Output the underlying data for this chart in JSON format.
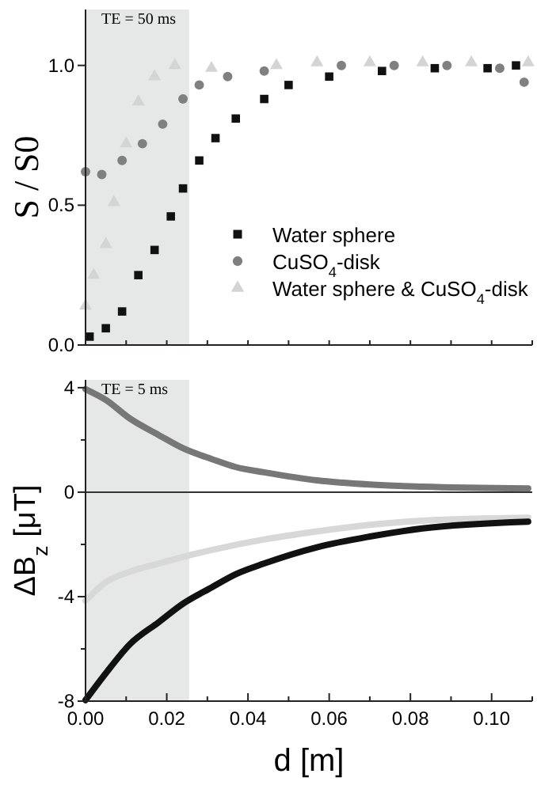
{
  "chart_data": [
    {
      "type": "scatter",
      "ylabel": "S / S0",
      "annotations": [
        "TE = 50 ms"
      ],
      "xlim": [
        0,
        0.11
      ],
      "ylim": [
        0,
        1.2
      ],
      "xticks": [
        {
          "value": 0,
          "label": null
        },
        {
          "value": 0.01,
          "label": null
        },
        {
          "value": 0.02,
          "label": null
        },
        {
          "value": 0.03,
          "label": null
        },
        {
          "value": 0.04,
          "label": null
        },
        {
          "value": 0.05,
          "label": null
        },
        {
          "value": 0.06,
          "label": null
        },
        {
          "value": 0.07,
          "label": null
        },
        {
          "value": 0.08,
          "label": null
        },
        {
          "value": 0.09,
          "label": null
        },
        {
          "value": 0.1,
          "label": null
        },
        {
          "value": 0.11,
          "label": null
        }
      ],
      "yticks": [
        {
          "value": 0,
          "label": "0.0"
        },
        {
          "value": 0.5,
          "label": "0.5"
        },
        {
          "value": 1,
          "label": "1.0"
        }
      ],
      "tick_labels": "y",
      "legend": "bottom right",
      "grid": false,
      "bands": [
        {
          "axis": "x",
          "from": 0,
          "to": 0.0255,
          "color": "#e6e8e8"
        }
      ],
      "series": [
        {
          "name": "Water sphere",
          "color": "#111111",
          "marker": "square",
          "x": [
            0.001,
            0.005,
            0.009,
            0.013,
            0.017,
            0.021,
            0.024,
            0.028,
            0.032,
            0.037,
            0.044,
            0.05,
            0.06,
            0.073,
            0.086,
            0.099,
            0.106
          ],
          "values": [
            0.03,
            0.06,
            0.12,
            0.25,
            0.34,
            0.46,
            0.56,
            0.66,
            0.74,
            0.81,
            0.88,
            0.93,
            0.96,
            0.98,
            0.99,
            0.99,
            1.0
          ]
        },
        {
          "name": "CuSO$_{4}$-disk",
          "color": "#808080",
          "marker": "circle",
          "x": [
            0,
            0.004,
            0.009,
            0.014,
            0.019,
            0.024,
            0.028,
            0.035,
            0.044,
            0.063,
            0.076,
            0.089,
            0.102,
            0.108
          ],
          "values": [
            0.62,
            0.61,
            0.66,
            0.72,
            0.79,
            0.88,
            0.93,
            0.96,
            0.98,
            1.0,
            1.0,
            1.0,
            0.99,
            0.94
          ]
        },
        {
          "name": "Water sphere & CuSO$_{4}$-disk",
          "color": "#d4d4d4",
          "marker": "triangle",
          "x": [
            0,
            0.002,
            0.005,
            0.007,
            0.01,
            0.013,
            0.017,
            0.022,
            0.031,
            0.047,
            0.057,
            0.07,
            0.083,
            0.095,
            0.109
          ],
          "values": [
            0.14,
            0.25,
            0.36,
            0.51,
            0.72,
            0.87,
            0.96,
            1.0,
            0.99,
            1.0,
            1.01,
            1.01,
            1.01,
            1.01,
            1.01
          ]
        }
      ]
    },
    {
      "type": "line",
      "ylabel": "ΔB$_{z}$ [μT]",
      "xlabel": "d [m]",
      "annotations": [
        "TE = 5 ms"
      ],
      "xlim": [
        0,
        0.11
      ],
      "ylim": [
        -8,
        4.3
      ],
      "xticks": [
        {
          "value": 0,
          "label": "0.00"
        },
        {
          "value": 0.01,
          "label": null
        },
        {
          "value": 0.02,
          "label": "0.02"
        },
        {
          "value": 0.03,
          "label": null
        },
        {
          "value": 0.04,
          "label": "0.04"
        },
        {
          "value": 0.05,
          "label": null
        },
        {
          "value": 0.06,
          "label": "0.06"
        },
        {
          "value": 0.07,
          "label": null
        },
        {
          "value": 0.08,
          "label": "0.08"
        },
        {
          "value": 0.09,
          "label": null
        },
        {
          "value": 0.1,
          "label": "0.10"
        },
        {
          "value": 0.11,
          "label": null
        }
      ],
      "yticks": [
        {
          "value": -8,
          "label": "-8"
        },
        {
          "value": -6,
          "label": null
        },
        {
          "value": -4,
          "label": "-4"
        },
        {
          "value": -2,
          "label": null
        },
        0,
        {
          "value": 2,
          "label": null
        },
        4
      ],
      "grid": false,
      "line_style": "solid",
      "marker": "none",
      "bands": [
        {
          "axis": "x",
          "from": 0,
          "to": 0.0255,
          "color": "#e6e8e8"
        }
      ],
      "ref_lines": [
        {
          "axis": "y",
          "value": 0,
          "color": "#333333"
        }
      ],
      "series": [
        {
          "color": "#777777",
          "x": [
            0,
            0.005,
            0.011,
            0.018,
            0.024,
            0.031,
            0.037,
            0.044,
            0.057,
            0.07,
            0.083,
            0.109
          ],
          "values": [
            3.94,
            3.53,
            2.81,
            2.19,
            1.68,
            1.27,
            0.96,
            0.76,
            0.45,
            0.29,
            0.21,
            0.14
          ]
        },
        {
          "color": "#d8d8d8",
          "x": [
            0,
            0.005,
            0.011,
            0.018,
            0.024,
            0.031,
            0.044,
            0.057,
            0.07,
            0.083,
            0.109
          ],
          "values": [
            -4.16,
            -3.45,
            -3.04,
            -2.73,
            -2.48,
            -2.22,
            -1.81,
            -1.5,
            -1.25,
            -1.09,
            -0.98
          ]
        },
        {
          "color": "#111111",
          "x": [
            0,
            0.005,
            0.011,
            0.018,
            0.024,
            0.031,
            0.037,
            0.044,
            0.057,
            0.07,
            0.083,
            0.109
          ],
          "values": [
            -7.96,
            -6.93,
            -5.81,
            -4.98,
            -4.27,
            -3.65,
            -3.14,
            -2.73,
            -2.11,
            -1.7,
            -1.39,
            -1.13
          ]
        }
      ]
    }
  ]
}
